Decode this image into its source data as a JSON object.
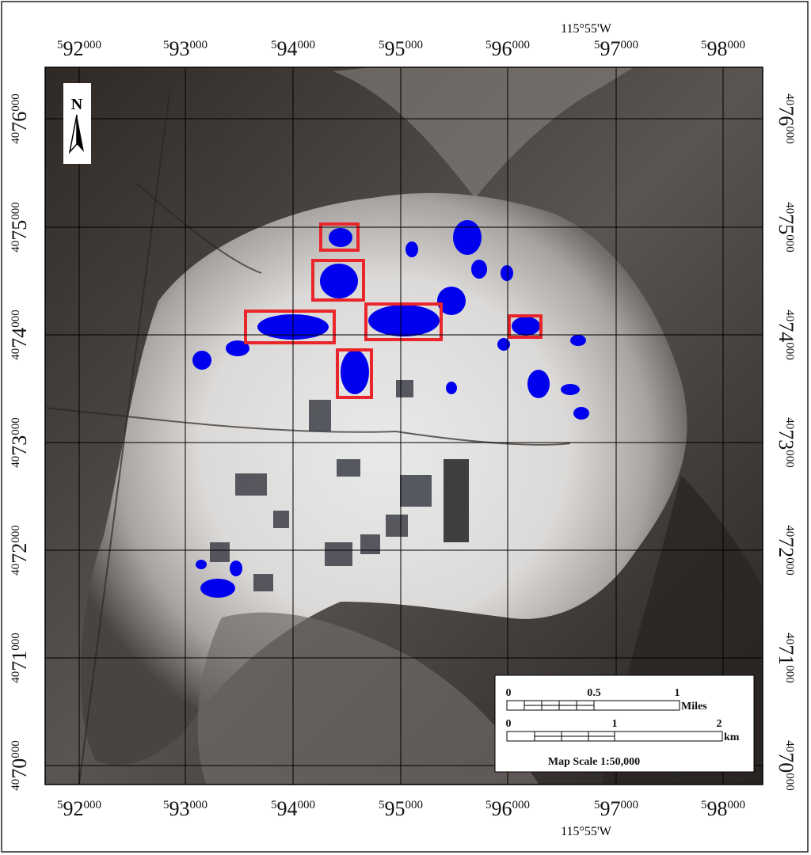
{
  "map": {
    "top_longitude": "115°55'W",
    "bottom_longitude": "115°55'W",
    "easting_labels": [
      {
        "prefix": "5",
        "main": "92",
        "suffix": "000"
      },
      {
        "prefix": "5",
        "main": "93",
        "suffix": "000"
      },
      {
        "prefix": "5",
        "main": "94",
        "suffix": "000"
      },
      {
        "prefix": "5",
        "main": "95",
        "suffix": "000"
      },
      {
        "prefix": "5",
        "main": "96",
        "suffix": "000"
      },
      {
        "prefix": "5",
        "main": "97",
        "suffix": "000"
      },
      {
        "prefix": "5",
        "main": "98",
        "suffix": "000"
      }
    ],
    "northing_labels": [
      {
        "prefix": "40",
        "main": "76",
        "suffix": "000"
      },
      {
        "prefix": "40",
        "main": "75",
        "suffix": "000"
      },
      {
        "prefix": "40",
        "main": "74",
        "suffix": "000"
      },
      {
        "prefix": "40",
        "main": "73",
        "suffix": "000"
      },
      {
        "prefix": "40",
        "main": "72",
        "suffix": "000"
      },
      {
        "prefix": "40",
        "main": "71",
        "suffix": "000"
      },
      {
        "prefix": "40",
        "main": "70",
        "suffix": "000"
      }
    ],
    "north_arrow": "N",
    "scale_bar": {
      "miles_ticks": [
        "0",
        "0.5",
        "1"
      ],
      "miles_unit": "Miles",
      "km_ticks": [
        "0",
        "1",
        "2"
      ],
      "km_unit": "km",
      "scale_text": "Map Scale 1:50,000"
    }
  }
}
